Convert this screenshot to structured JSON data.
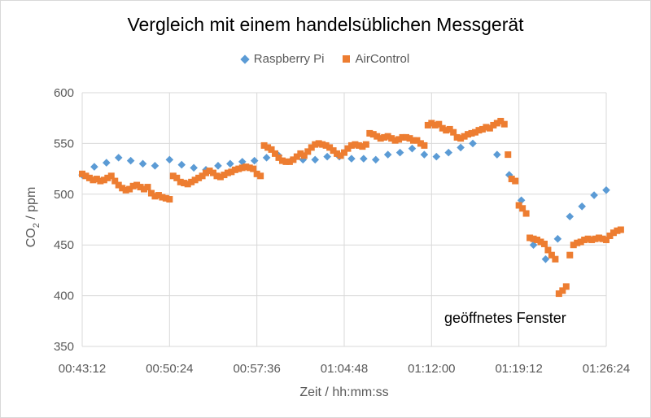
{
  "colors": {
    "raspberry": "#5b9bd5",
    "aircontrol": "#ed7d31",
    "grid": "#d9d9d9",
    "axis_text": "#595959"
  },
  "chart_data": {
    "type": "scatter",
    "title": "Vergleich mit einem handelsüblichen Messgerät",
    "xlabel": "Zeit / hh:mm:ss",
    "ylabel_main": "CO",
    "ylabel_sub": "2",
    "ylabel_rest": " / ppm",
    "ylim": [
      350,
      600
    ],
    "yticks": [
      350,
      400,
      450,
      500,
      550,
      600
    ],
    "xlim": [
      "00:43:12",
      "01:26:24"
    ],
    "xticks": [
      "00:43:12",
      "00:50:24",
      "00:57:36",
      "01:04:48",
      "01:12:00",
      "01:19:12",
      "01:26:24"
    ],
    "grid": true,
    "legend_position": "top",
    "annotation": "geöffnetes Fenster",
    "series": [
      {
        "name": "Raspberry Pi",
        "marker": "diamond",
        "points": [
          [
            "00:43:12",
            519
          ],
          [
            "00:44:12",
            527
          ],
          [
            "00:45:12",
            531
          ],
          [
            "00:46:12",
            536
          ],
          [
            "00:47:12",
            533
          ],
          [
            "00:48:12",
            530
          ],
          [
            "00:49:12",
            528
          ],
          [
            "00:50:24",
            534
          ],
          [
            "00:51:24",
            529
          ],
          [
            "00:52:24",
            526
          ],
          [
            "00:53:24",
            524
          ],
          [
            "00:54:24",
            528
          ],
          [
            "00:55:24",
            530
          ],
          [
            "00:56:24",
            532
          ],
          [
            "00:57:24",
            533
          ],
          [
            "00:58:24",
            536
          ],
          [
            "00:59:24",
            538
          ],
          [
            "01:00:24",
            533
          ],
          [
            "01:01:24",
            534
          ],
          [
            "01:02:24",
            534
          ],
          [
            "01:03:24",
            537
          ],
          [
            "01:04:24",
            537
          ],
          [
            "01:05:24",
            535
          ],
          [
            "01:06:24",
            535
          ],
          [
            "01:07:24",
            534
          ],
          [
            "01:08:24",
            539
          ],
          [
            "01:09:24",
            541
          ],
          [
            "01:10:24",
            545
          ],
          [
            "01:11:24",
            539
          ],
          [
            "01:12:24",
            537
          ],
          [
            "01:13:24",
            541
          ],
          [
            "01:14:24",
            546
          ],
          [
            "01:15:24",
            550
          ],
          [
            "01:17:24",
            539
          ],
          [
            "01:18:24",
            519
          ],
          [
            "01:19:24",
            494
          ],
          [
            "01:20:24",
            450
          ],
          [
            "01:21:24",
            436
          ],
          [
            "01:22:24",
            456
          ],
          [
            "01:23:24",
            478
          ],
          [
            "01:24:24",
            488
          ],
          [
            "01:25:24",
            499
          ],
          [
            "01:26:24",
            504
          ]
        ]
      },
      {
        "name": "AirControl",
        "marker": "square",
        "points": [
          [
            "00:43:12",
            520
          ],
          [
            "00:43:30",
            518
          ],
          [
            "00:43:48",
            516
          ],
          [
            "00:44:06",
            514
          ],
          [
            "00:44:24",
            515
          ],
          [
            "00:44:42",
            513
          ],
          [
            "00:45:00",
            514
          ],
          [
            "00:45:18",
            516
          ],
          [
            "00:45:36",
            518
          ],
          [
            "00:45:54",
            513
          ],
          [
            "00:46:12",
            509
          ],
          [
            "00:46:30",
            506
          ],
          [
            "00:46:48",
            504
          ],
          [
            "00:47:06",
            505
          ],
          [
            "00:47:24",
            508
          ],
          [
            "00:47:42",
            509
          ],
          [
            "00:48:00",
            507
          ],
          [
            "00:48:18",
            505
          ],
          [
            "00:48:36",
            507
          ],
          [
            "00:48:54",
            501
          ],
          [
            "00:49:12",
            498
          ],
          [
            "00:49:30",
            499
          ],
          [
            "00:49:48",
            497
          ],
          [
            "00:50:06",
            496
          ],
          [
            "00:50:24",
            495
          ],
          [
            "00:50:42",
            518
          ],
          [
            "00:51:00",
            516
          ],
          [
            "00:51:18",
            512
          ],
          [
            "00:51:36",
            511
          ],
          [
            "00:51:54",
            510
          ],
          [
            "00:52:12",
            512
          ],
          [
            "00:52:30",
            514
          ],
          [
            "00:52:48",
            516
          ],
          [
            "00:53:06",
            518
          ],
          [
            "00:53:24",
            521
          ],
          [
            "00:53:42",
            523
          ],
          [
            "00:54:00",
            521
          ],
          [
            "00:54:18",
            518
          ],
          [
            "00:54:36",
            517
          ],
          [
            "00:54:54",
            519
          ],
          [
            "00:55:12",
            521
          ],
          [
            "00:55:30",
            522
          ],
          [
            "00:55:48",
            524
          ],
          [
            "00:56:06",
            525
          ],
          [
            "00:56:24",
            526
          ],
          [
            "00:56:42",
            527
          ],
          [
            "00:57:00",
            526
          ],
          [
            "00:57:18",
            525
          ],
          [
            "00:57:36",
            520
          ],
          [
            "00:57:54",
            518
          ],
          [
            "00:58:12",
            548
          ],
          [
            "00:58:30",
            546
          ],
          [
            "00:58:48",
            544
          ],
          [
            "00:59:06",
            540
          ],
          [
            "00:59:24",
            536
          ],
          [
            "00:59:42",
            533
          ],
          [
            "01:00:00",
            532
          ],
          [
            "01:00:18",
            532
          ],
          [
            "01:00:36",
            534
          ],
          [
            "01:00:54",
            537
          ],
          [
            "01:01:12",
            540
          ],
          [
            "01:01:30",
            538
          ],
          [
            "01:01:48",
            542
          ],
          [
            "01:02:06",
            546
          ],
          [
            "01:02:24",
            549
          ],
          [
            "01:02:42",
            550
          ],
          [
            "01:03:00",
            549
          ],
          [
            "01:03:18",
            548
          ],
          [
            "01:03:36",
            546
          ],
          [
            "01:03:54",
            543
          ],
          [
            "01:04:12",
            540
          ],
          [
            "01:04:30",
            538
          ],
          [
            "01:04:48",
            541
          ],
          [
            "01:05:06",
            545
          ],
          [
            "01:05:24",
            548
          ],
          [
            "01:05:42",
            549
          ],
          [
            "01:06:00",
            548
          ],
          [
            "01:06:18",
            547
          ],
          [
            "01:06:36",
            549
          ],
          [
            "01:06:54",
            560
          ],
          [
            "01:07:12",
            559
          ],
          [
            "01:07:30",
            557
          ],
          [
            "01:07:48",
            555
          ],
          [
            "01:08:06",
            556
          ],
          [
            "01:08:24",
            557
          ],
          [
            "01:08:42",
            555
          ],
          [
            "01:09:00",
            553
          ],
          [
            "01:09:18",
            554
          ],
          [
            "01:09:36",
            556
          ],
          [
            "01:09:54",
            556
          ],
          [
            "01:10:12",
            555
          ],
          [
            "01:10:30",
            553
          ],
          [
            "01:10:48",
            553
          ],
          [
            "01:11:06",
            550
          ],
          [
            "01:11:24",
            548
          ],
          [
            "01:11:42",
            568
          ],
          [
            "01:12:00",
            570
          ],
          [
            "01:12:18",
            568
          ],
          [
            "01:12:36",
            569
          ],
          [
            "01:12:54",
            565
          ],
          [
            "01:13:12",
            563
          ],
          [
            "01:13:30",
            564
          ],
          [
            "01:13:48",
            561
          ],
          [
            "01:14:06",
            556
          ],
          [
            "01:14:24",
            555
          ],
          [
            "01:14:42",
            557
          ],
          [
            "01:15:00",
            559
          ],
          [
            "01:15:18",
            560
          ],
          [
            "01:15:36",
            561
          ],
          [
            "01:15:54",
            563
          ],
          [
            "01:16:12",
            564
          ],
          [
            "01:16:30",
            566
          ],
          [
            "01:16:48",
            565
          ],
          [
            "01:17:06",
            568
          ],
          [
            "01:17:24",
            570
          ],
          [
            "01:17:42",
            572
          ],
          [
            "01:18:00",
            569
          ],
          [
            "01:18:18",
            539
          ],
          [
            "01:18:36",
            515
          ],
          [
            "01:18:54",
            513
          ],
          [
            "01:19:12",
            489
          ],
          [
            "01:19:30",
            486
          ],
          [
            "01:19:48",
            481
          ],
          [
            "01:20:06",
            457
          ],
          [
            "01:20:24",
            456
          ],
          [
            "01:20:42",
            455
          ],
          [
            "01:21:00",
            453
          ],
          [
            "01:21:18",
            451
          ],
          [
            "01:21:36",
            445
          ],
          [
            "01:21:54",
            440
          ],
          [
            "01:22:12",
            436
          ],
          [
            "01:22:30",
            402
          ],
          [
            "01:22:48",
            405
          ],
          [
            "01:23:06",
            409
          ],
          [
            "01:23:24",
            440
          ],
          [
            "01:23:42",
            450
          ],
          [
            "01:24:00",
            452
          ],
          [
            "01:24:18",
            453
          ],
          [
            "01:24:36",
            455
          ],
          [
            "01:24:54",
            456
          ],
          [
            "01:25:12",
            455
          ],
          [
            "01:25:30",
            456
          ],
          [
            "01:25:48",
            457
          ],
          [
            "01:26:06",
            456
          ],
          [
            "01:26:24",
            455
          ],
          [
            "01:26:42",
            459
          ],
          [
            "01:27:00",
            462
          ],
          [
            "01:27:18",
            464
          ],
          [
            "01:27:36",
            465
          ]
        ]
      }
    ]
  }
}
